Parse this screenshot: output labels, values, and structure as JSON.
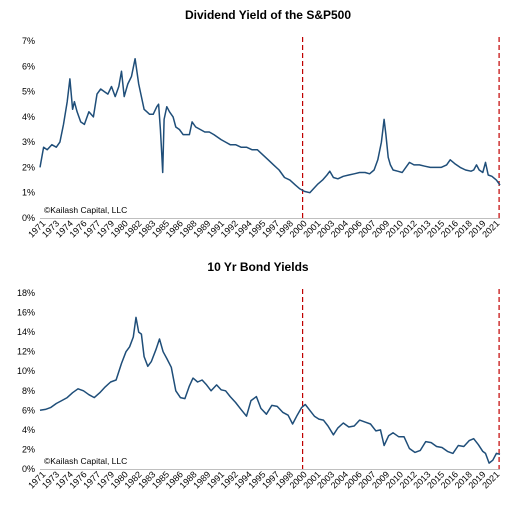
{
  "chart_data": [
    {
      "type": "line",
      "title": "Dividend Yield of the S&P500",
      "annotation": "©Kailash Capital, LLC",
      "xlim": [
        1971,
        2021.8
      ],
      "ylim": [
        0,
        7
      ],
      "y_ticks": [
        "0%",
        "1%",
        "2%",
        "3%",
        "4%",
        "5%",
        "6%",
        "7%"
      ],
      "x_ticks": [
        "1971",
        "1973",
        "1974",
        "1976",
        "1977",
        "1979",
        "1980",
        "1982",
        "1983",
        "1985",
        "1986",
        "1988",
        "1989",
        "1991",
        "1992",
        "1994",
        "1995",
        "1997",
        "1998",
        "2000",
        "2001",
        "2003",
        "2004",
        "2006",
        "2007",
        "2009",
        "2010",
        "2012",
        "2013",
        "2015",
        "2016",
        "2018",
        "2019",
        "2021"
      ],
      "markers_x": [
        2000,
        2021.7
      ],
      "color": "#1f4e79",
      "marker_color": "#c00000",
      "series": [
        {
          "x": [
            1971,
            1971.4,
            1971.8,
            1972.3,
            1972.8,
            1973.2,
            1973.6,
            1974.0,
            1974.3,
            1974.6,
            1974.8,
            1975.1,
            1975.5,
            1975.9,
            1976.4,
            1976.9,
            1977.3,
            1977.7,
            1978.1,
            1978.5,
            1978.9,
            1979.3,
            1979.7,
            1980.0,
            1980.3,
            1980.7,
            1981.1,
            1981.5,
            1981.9,
            1982.2,
            1982.5,
            1982.8,
            1983.1,
            1983.5,
            1983.9,
            1984.1,
            1984.3,
            1984.45,
            1984.55,
            1984.7,
            1985.0,
            1985.3,
            1985.7,
            1986.0,
            1986.4,
            1986.8,
            1987.2,
            1987.5,
            1987.8,
            1988.2,
            1988.7,
            1989.2,
            1989.7,
            1990.2,
            1990.6,
            1991.0,
            1991.5,
            1992.0,
            1992.6,
            1993.2,
            1993.8,
            1994.4,
            1995.0,
            1995.6,
            1996.2,
            1996.8,
            1997.4,
            1998.0,
            1998.6,
            1999.2,
            1999.7,
            2000.2,
            2000.8,
            2001.3,
            2001.7,
            2002.2,
            2002.7,
            2003.0,
            2003.4,
            2003.9,
            2004.5,
            2005.1,
            2005.7,
            2006.3,
            2006.9,
            2007.4,
            2007.9,
            2008.3,
            2008.7,
            2009.0,
            2009.2,
            2009.45,
            2009.7,
            2010.0,
            2010.5,
            2011.0,
            2011.5,
            2011.8,
            2012.3,
            2012.9,
            2013.5,
            2014.1,
            2014.7,
            2015.3,
            2015.9,
            2016.3,
            2016.8,
            2017.4,
            2018.0,
            2018.6,
            2018.9,
            2019.2,
            2019.5,
            2019.9,
            2020.2,
            2020.5,
            2020.9,
            2021.4,
            2021.8
          ],
          "y": [
            2.0,
            2.8,
            2.7,
            2.9,
            2.8,
            3.0,
            3.7,
            4.6,
            5.5,
            4.3,
            4.6,
            4.2,
            3.8,
            3.7,
            4.2,
            4.0,
            4.9,
            5.1,
            5.0,
            4.9,
            5.2,
            4.8,
            5.2,
            5.8,
            4.8,
            5.3,
            5.6,
            6.3,
            5.3,
            4.8,
            4.3,
            4.2,
            4.1,
            4.1,
            4.4,
            4.5,
            3.5,
            2.5,
            1.8,
            3.9,
            4.4,
            4.2,
            4.0,
            3.6,
            3.5,
            3.3,
            3.3,
            3.3,
            3.8,
            3.6,
            3.5,
            3.4,
            3.4,
            3.3,
            3.2,
            3.1,
            3.0,
            2.9,
            2.9,
            2.8,
            2.8,
            2.7,
            2.7,
            2.5,
            2.3,
            2.1,
            1.9,
            1.6,
            1.5,
            1.3,
            1.15,
            1.05,
            1.0,
            1.2,
            1.35,
            1.5,
            1.7,
            1.85,
            1.6,
            1.55,
            1.65,
            1.7,
            1.75,
            1.8,
            1.8,
            1.75,
            1.9,
            2.3,
            3.0,
            3.9,
            3.3,
            2.4,
            2.1,
            1.9,
            1.85,
            1.8,
            2.05,
            2.2,
            2.1,
            2.1,
            2.05,
            2.0,
            2.0,
            2.0,
            2.1,
            2.3,
            2.15,
            2.0,
            1.9,
            1.85,
            1.9,
            2.1,
            1.9,
            1.8,
            2.2,
            1.7,
            1.65,
            1.5,
            1.3
          ]
        }
      ]
    },
    {
      "type": "line",
      "title": "10 Yr Bond Yields",
      "annotation": "©Kailash Capital, LLC",
      "xlim": [
        1971,
        2021.8
      ],
      "ylim": [
        0,
        18
      ],
      "y_ticks": [
        "0%",
        "2%",
        "4%",
        "6%",
        "8%",
        "10%",
        "12%",
        "14%",
        "16%",
        "18%"
      ],
      "x_ticks": [
        "1971",
        "1973",
        "1974",
        "1976",
        "1977",
        "1979",
        "1980",
        "1982",
        "1983",
        "1985",
        "1986",
        "1988",
        "1989",
        "1991",
        "1992",
        "1994",
        "1995",
        "1997",
        "1998",
        "2000",
        "2001",
        "2003",
        "2004",
        "2006",
        "2007",
        "2009",
        "2010",
        "2012",
        "2013",
        "2015",
        "2016",
        "2018",
        "2019",
        "2021"
      ],
      "markers_x": [
        2000,
        2021.7
      ],
      "color": "#1f4e79",
      "marker_color": "#c00000",
      "series": [
        {
          "x": [
            1971,
            1971.6,
            1972.2,
            1972.8,
            1973.4,
            1974.0,
            1974.6,
            1975.2,
            1975.8,
            1976.4,
            1977.0,
            1977.6,
            1978.2,
            1978.8,
            1979.4,
            1980.0,
            1980.5,
            1980.9,
            1981.3,
            1981.6,
            1981.9,
            1982.2,
            1982.5,
            1982.9,
            1983.3,
            1983.8,
            1984.2,
            1984.6,
            1985.0,
            1985.5,
            1986.0,
            1986.5,
            1987.0,
            1987.5,
            1987.9,
            1988.4,
            1988.9,
            1989.4,
            1989.9,
            1990.5,
            1991.0,
            1991.5,
            1992.0,
            1992.6,
            1993.2,
            1993.8,
            1994.3,
            1994.9,
            1995.4,
            1996.0,
            1996.6,
            1997.2,
            1997.8,
            1998.4,
            1998.9,
            1999.4,
            1999.9,
            2000.3,
            2000.8,
            2001.3,
            2001.8,
            2002.3,
            2002.8,
            2003.4,
            2003.9,
            2004.5,
            2005.1,
            2005.7,
            2006.3,
            2006.9,
            2007.5,
            2008.1,
            2008.6,
            2009.0,
            2009.5,
            2010.0,
            2010.6,
            2011.2,
            2011.8,
            2012.4,
            2013.0,
            2013.6,
            2014.2,
            2014.8,
            2015.4,
            2016.0,
            2016.6,
            2017.2,
            2017.8,
            2018.4,
            2018.9,
            2019.4,
            2019.9,
            2020.2,
            2020.6,
            2021.0,
            2021.4,
            2021.8
          ],
          "y": [
            6.0,
            6.1,
            6.3,
            6.7,
            7.0,
            7.3,
            7.8,
            8.2,
            8.0,
            7.6,
            7.3,
            7.8,
            8.4,
            8.9,
            9.1,
            10.8,
            12.0,
            12.5,
            13.5,
            15.5,
            14.0,
            13.8,
            11.5,
            10.5,
            11.0,
            12.2,
            13.3,
            12.0,
            11.3,
            10.4,
            8.0,
            7.3,
            7.2,
            8.5,
            9.3,
            8.9,
            9.1,
            8.6,
            8.0,
            8.6,
            8.1,
            8.0,
            7.4,
            6.8,
            6.1,
            5.4,
            7.0,
            7.4,
            6.2,
            5.6,
            6.5,
            6.4,
            5.8,
            5.5,
            4.6,
            5.5,
            6.3,
            6.6,
            6.0,
            5.4,
            5.1,
            5.0,
            4.4,
            3.5,
            4.2,
            4.7,
            4.3,
            4.4,
            5.0,
            4.8,
            4.6,
            3.9,
            4.0,
            2.4,
            3.4,
            3.7,
            3.3,
            3.3,
            2.1,
            1.7,
            1.9,
            2.8,
            2.7,
            2.3,
            2.2,
            1.8,
            1.6,
            2.4,
            2.3,
            2.9,
            3.1,
            2.5,
            1.8,
            1.6,
            0.6,
            0.9,
            1.6,
            1.5
          ]
        }
      ]
    }
  ]
}
